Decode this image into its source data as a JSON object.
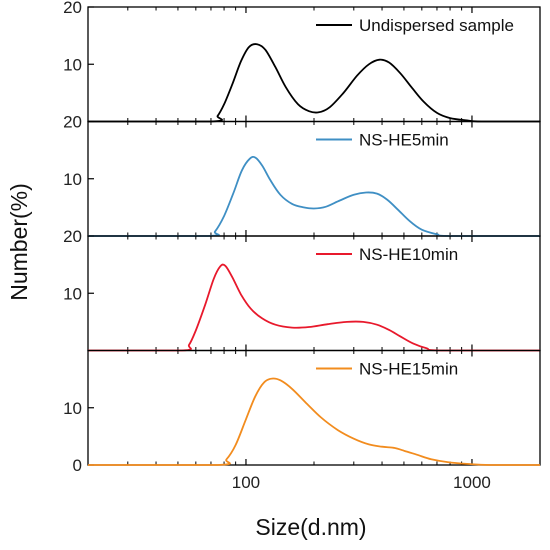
{
  "chart_data": {
    "type": "line",
    "xlabel": "Size(d.nm)",
    "ylabel": "Number(%)",
    "x_scale": "log",
    "xlim": [
      20,
      2000
    ],
    "x_ticks": [
      100,
      1000
    ],
    "x_tick_labels": [
      "100",
      "1000"
    ],
    "ylim": [
      0,
      20
    ],
    "y_ticks": [
      0,
      10,
      20
    ],
    "y_tick_labels_per_panel": [
      [
        "10",
        "20"
      ],
      [
        "10",
        "20"
      ],
      [
        "10",
        "20"
      ],
      [
        "0",
        "10"
      ]
    ],
    "grid": false,
    "legend_placement": "top-right in each panel",
    "panels": [
      {
        "series": [
          {
            "name": "Undispersed sample",
            "color": "#000000",
            "points": [
              [
                70,
                0
              ],
              [
                75,
                1
              ],
              [
                80,
                3
              ],
              [
                87,
                6.5
              ],
              [
                95,
                10.5
              ],
              [
                103,
                13
              ],
              [
                112,
                13.5
              ],
              [
                122,
                12.5
              ],
              [
                135,
                9.5
              ],
              [
                150,
                6
              ],
              [
                170,
                3
              ],
              [
                190,
                1.8
              ],
              [
                210,
                1.6
              ],
              [
                235,
                2.5
              ],
              [
                270,
                5
              ],
              [
                310,
                8
              ],
              [
                350,
                10
              ],
              [
                390,
                10.8
              ],
              [
                430,
                10.3
              ],
              [
                480,
                8.5
              ],
              [
                540,
                6
              ],
              [
                610,
                3.5
              ],
              [
                700,
                1.5
              ],
              [
                800,
                0.6
              ],
              [
                950,
                0.2
              ],
              [
                1100,
                0
              ]
            ]
          }
        ]
      },
      {
        "series": [
          {
            "name": "NS-HE5min",
            "color": "#3f8fc4",
            "points": [
              [
                68,
                0
              ],
              [
                73,
                0.8
              ],
              [
                80,
                3.5
              ],
              [
                88,
                7.5
              ],
              [
                96,
                11.5
              ],
              [
                104,
                13.5
              ],
              [
                110,
                13.7
              ],
              [
                118,
                12.3
              ],
              [
                128,
                9.8
              ],
              [
                142,
                7.2
              ],
              [
                160,
                5.6
              ],
              [
                180,
                5
              ],
              [
                200,
                4.8
              ],
              [
                225,
                5.1
              ],
              [
                260,
                6.2
              ],
              [
                300,
                7.2
              ],
              [
                340,
                7.6
              ],
              [
                380,
                7.4
              ],
              [
                420,
                6.4
              ],
              [
                470,
                4.6
              ],
              [
                530,
                2.6
              ],
              [
                600,
                1.1
              ],
              [
                700,
                0.3
              ],
              [
                800,
                0
              ]
            ]
          }
        ]
      },
      {
        "series": [
          {
            "name": "NS-HE10min",
            "color": "#e8192c",
            "points": [
              [
                52,
                0
              ],
              [
                56,
                1
              ],
              [
                60,
                3.5
              ],
              [
                66,
                8
              ],
              [
                72,
                12.5
              ],
              [
                77,
                14.7
              ],
              [
                81,
                14.8
              ],
              [
                87,
                12.8
              ],
              [
                95,
                9.8
              ],
              [
                105,
                7.3
              ],
              [
                118,
                5.6
              ],
              [
                135,
                4.5
              ],
              [
                160,
                4
              ],
              [
                190,
                4.1
              ],
              [
                230,
                4.6
              ],
              [
                280,
                5
              ],
              [
                330,
                5
              ],
              [
                380,
                4.5
              ],
              [
                430,
                3.6
              ],
              [
                480,
                2.5
              ],
              [
                550,
                1.2
              ],
              [
                630,
                0.4
              ],
              [
                730,
                0
              ]
            ]
          }
        ]
      },
      {
        "series": [
          {
            "name": "NS-HE15min",
            "color": "#f28c1e",
            "points": [
              [
                75,
                0
              ],
              [
                82,
                1
              ],
              [
                90,
                3.5
              ],
              [
                100,
                8
              ],
              [
                110,
                12
              ],
              [
                120,
                14.4
              ],
              [
                130,
                15.1
              ],
              [
                142,
                14.8
              ],
              [
                160,
                13.3
              ],
              [
                185,
                10.8
              ],
              [
                215,
                8.3
              ],
              [
                255,
                6.1
              ],
              [
                300,
                4.6
              ],
              [
                350,
                3.6
              ],
              [
                400,
                3.2
              ],
              [
                450,
                3
              ],
              [
                500,
                2.5
              ],
              [
                570,
                1.8
              ],
              [
                660,
                1
              ],
              [
                780,
                0.5
              ],
              [
                950,
                0.2
              ],
              [
                1200,
                0
              ]
            ]
          }
        ]
      }
    ]
  }
}
